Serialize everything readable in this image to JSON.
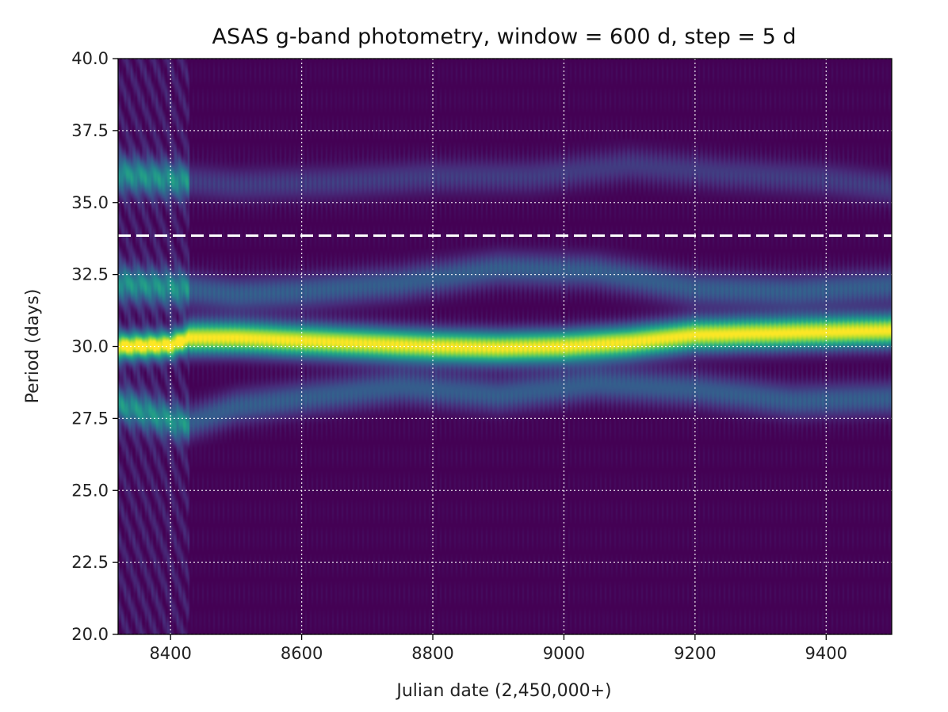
{
  "chart_data": {
    "type": "heatmap",
    "title": "ASAS g-band photometry, window =  600 d, step =   5 d",
    "xlabel": "Julian date (2,450,000+)",
    "ylabel": "Period (days)",
    "xlim": [
      8320,
      9500
    ],
    "ylim": [
      20.0,
      40.0
    ],
    "x_ticks": [
      8400,
      8600,
      8800,
      9000,
      9200,
      9400
    ],
    "x_tick_labels": [
      "8400",
      "8600",
      "8800",
      "9000",
      "9200",
      "9400"
    ],
    "y_ticks": [
      20.0,
      22.5,
      25.0,
      27.5,
      30.0,
      32.5,
      35.0,
      37.5,
      40.0
    ],
    "y_tick_labels": [
      "20.0",
      "22.5",
      "25.0",
      "27.5",
      "30.0",
      "32.5",
      "35.0",
      "37.5",
      "40.0"
    ],
    "grid": true,
    "colormap": "viridis",
    "reference_line": {
      "period": 33.85,
      "style": "dashed",
      "color": "#ffffff"
    },
    "main_ridge": {
      "x": [
        8320,
        8400,
        8430,
        8500,
        8600,
        8700,
        8800,
        8900,
        9000,
        9100,
        9200,
        9300,
        9400,
        9500
      ],
      "period": [
        30.0,
        30.05,
        30.3,
        30.3,
        30.2,
        30.1,
        30.0,
        29.95,
        30.0,
        30.15,
        30.4,
        30.45,
        30.5,
        30.55
      ]
    },
    "secondary_ridges": [
      {
        "x": [
          8320,
          8420,
          8500,
          8600,
          8750,
          8900,
          9050,
          9200,
          9350,
          9500
        ],
        "period": [
          32.2,
          32.0,
          31.8,
          31.9,
          32.2,
          32.7,
          32.6,
          32.0,
          31.9,
          32.1
        ]
      },
      {
        "x": [
          8320,
          8420,
          8500,
          8600,
          8750,
          8900,
          9050,
          9200,
          9350,
          9500
        ],
        "period": [
          28.0,
          27.3,
          27.9,
          28.2,
          28.6,
          28.3,
          28.7,
          28.5,
          28.1,
          28.2
        ]
      },
      {
        "x": [
          8320,
          8400,
          8500,
          8650,
          8800,
          8950,
          9100,
          9250,
          9400,
          9500
        ],
        "period": [
          36.0,
          35.8,
          35.6,
          35.7,
          35.9,
          35.9,
          36.3,
          36.0,
          35.8,
          35.5
        ]
      }
    ],
    "colors": {
      "low": "#440154",
      "mid": "#21918c",
      "high": "#fde725",
      "grid": "#ffffff"
    }
  }
}
